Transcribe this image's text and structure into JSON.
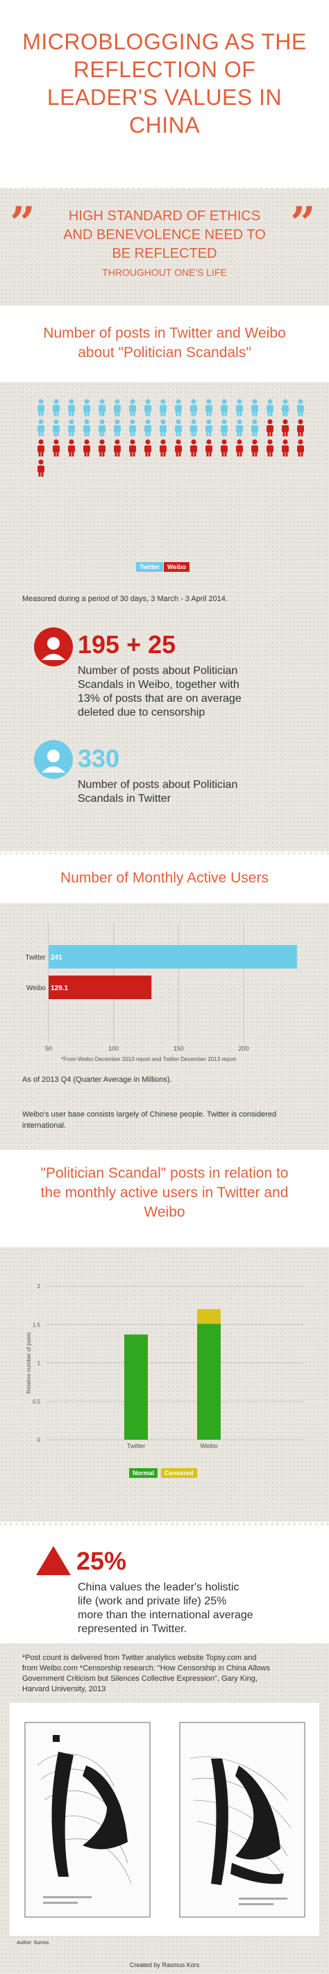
{
  "header": {
    "title_lines": [
      "MICROBLOGGING AS THE",
      "REFLECTION OF",
      "LEADER'S VALUES IN",
      "CHINA"
    ]
  },
  "quote": {
    "lines": [
      "HIGH STANDARD OF ETHICS",
      "AND BENEVOLENCE NEED TO",
      "BE REFLECTED"
    ],
    "small_line": "THROUGHOUT ONE'S LIFE"
  },
  "posts_section": {
    "title_line1": "Number of posts in Twitter and Weibo",
    "title_line2": "about \"Politician Scandals\"",
    "legend_twitter": "Twitter",
    "legend_weibo": "Weibo",
    "measured_note": "Measured during a period of 30 days, 3 March - 3 April 2014.",
    "weibo_stat": "195 + 25",
    "weibo_text": [
      "Number of posts about Politician",
      "Scandals in Weibo, together with",
      "13% of posts that are on average",
      "deleted due to censorship"
    ],
    "twitter_stat": "330",
    "twitter_text": [
      "Number of posts about Politician",
      "Scandals in Twitter"
    ]
  },
  "colors": {
    "accent": "#e0603c",
    "twitter": "#6dcde8",
    "weibo": "#cc1f1a",
    "normal": "#2ea81e",
    "censored": "#d8c31a"
  },
  "mau_section": {
    "title": "Number of Monthly Active Users",
    "source_note": "*From Weibo December 2013 report and Twitter December 2013 report",
    "quarter_note": "As of 2013 Q4 (Quarter Average in Millions).",
    "userbase_note": [
      "Weibo's user base consists largely of Chinese people. Twitter is considered",
      "international."
    ]
  },
  "relation_section": {
    "title_lines": [
      "\"Politician Scandal\" posts in relation to",
      "the monthly active users in Twitter and",
      "Weibo"
    ],
    "legend_normal": "Normal",
    "legend_censored": "Censored"
  },
  "holistic": {
    "stat": "25%",
    "text": [
      "China values the leader's holistic",
      "life (work and private life) 25%",
      "more than the international average",
      "represented in Twitter."
    ]
  },
  "footnotes": {
    "lines": [
      "*Post count is delivered from Twitter analytics website Topsy.com and",
      "from Weibo.com   *Censorship research: \"How Censorship in China Allows",
      "Government Criticism but Silences Collective Expression\", Gary King,",
      "Harvard University, 2013"
    ],
    "art_author": "Author: Sumos"
  },
  "footer": {
    "credit": "Created by Rasmus Kors"
  },
  "chart_data": [
    {
      "type": "icon-array",
      "title": "Number of posts in Twitter and Weibo about \"Politician Scandals\"",
      "series": [
        {
          "name": "Twitter",
          "value": 330
        },
        {
          "name": "Weibo",
          "value": 220
        }
      ]
    },
    {
      "type": "bar",
      "orientation": "horizontal",
      "title": "Number of Monthly Active Users",
      "categories": [
        "Twitter",
        "Weibo"
      ],
      "values": [
        241,
        129.1
      ],
      "value_labels": [
        "241",
        "129.1"
      ],
      "xlim": [
        50,
        240
      ],
      "xticks": [
        50,
        100,
        150,
        200
      ],
      "grid": true
    },
    {
      "type": "bar",
      "stacked": true,
      "title": "\"Politician Scandal\" posts in relation to the monthly active users in Twitter and Weibo",
      "categories": [
        "Twitter",
        "Weibo"
      ],
      "series": [
        {
          "name": "Normal",
          "values": [
            1.37,
            1.51
          ]
        },
        {
          "name": "Censored",
          "values": [
            0,
            0.19
          ]
        }
      ],
      "ylabel": "Relative number of posts",
      "ylim": [
        0,
        2
      ],
      "yticks": [
        0,
        0.5,
        1,
        1.5,
        2
      ],
      "grid": true,
      "legend": "bottom"
    }
  ]
}
